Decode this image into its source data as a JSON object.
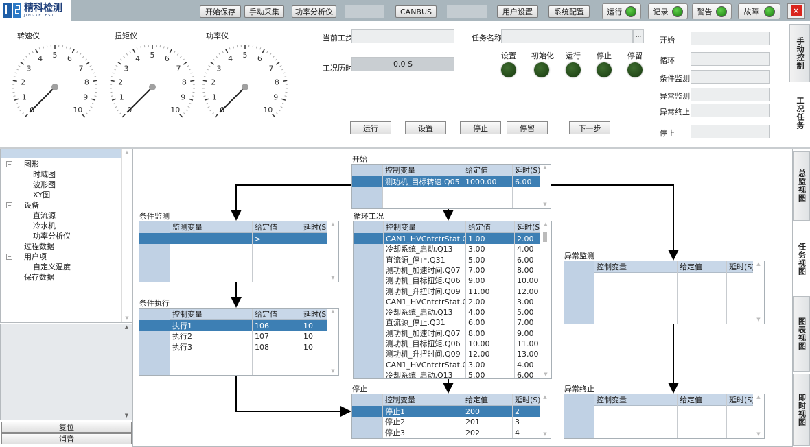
{
  "app": {
    "logo_text": "精科检测",
    "logo_sub": "JINGKETEST"
  },
  "toolbar": {
    "buttons": [
      "开始保存",
      "手动采集",
      "功率分析仪",
      "CANBUS",
      "用户设置",
      "系统配置"
    ],
    "indicators": [
      {
        "label": "运行",
        "color": "#3cb22a"
      },
      {
        "label": "记录",
        "color": "#3cb22a"
      },
      {
        "label": "警告",
        "color": "#3cb22a"
      },
      {
        "label": "故障",
        "color": "#3cb22a"
      }
    ],
    "close": "✕"
  },
  "gauges": [
    {
      "label": "转速仪",
      "value": 0,
      "min": 0,
      "max": 10
    },
    {
      "label": "扭矩仪",
      "value": 0,
      "min": 0,
      "max": 10
    },
    {
      "label": "功率仪",
      "value": 0,
      "min": 0,
      "max": 10
    }
  ],
  "task": {
    "current_step_label": "当前工步",
    "current_step_value": "",
    "elapsed_label": "工况历时",
    "elapsed_value": "0.0 S",
    "task_name_label": "任务名称",
    "task_name_value": "",
    "browse": "...",
    "status_leds": [
      "设置",
      "初始化",
      "运行",
      "停止",
      "停留"
    ],
    "buttons": [
      "运行",
      "设置",
      "停止",
      "停留",
      "下一步"
    ],
    "sections": [
      "开始",
      "循环",
      "条件监测",
      "异常监测",
      "异常终止",
      "停止"
    ]
  },
  "top_tabs": [
    "手动控制",
    "工况任务"
  ],
  "tree": [
    {
      "label": "图形",
      "level": 0,
      "expand": true
    },
    {
      "label": "时域图",
      "level": 1
    },
    {
      "label": "波形图",
      "level": 1
    },
    {
      "label": "XY图",
      "level": 1
    },
    {
      "label": "设备",
      "level": 0,
      "expand": true
    },
    {
      "label": "直流源",
      "level": 1
    },
    {
      "label": "冷水机",
      "level": 1
    },
    {
      "label": "功率分析仪",
      "level": 1
    },
    {
      "label": "过程数据",
      "level": 0
    },
    {
      "label": "用户项",
      "level": 0,
      "expand": true
    },
    {
      "label": "自定义温度",
      "level": 1
    },
    {
      "label": "保存数据",
      "level": 0
    }
  ],
  "left_buttons": {
    "reset": "复位",
    "mute": "消音"
  },
  "side_tabs": [
    "总监视图",
    "任务视图",
    "图表视图",
    "即时视图"
  ],
  "tables": {
    "start": {
      "title": "开始",
      "headers": [
        "控制变量",
        "给定值",
        "延时(S)"
      ],
      "rows": [
        [
          "测功机_目标转速.Q05",
          "1000.00",
          "6.00"
        ]
      ]
    },
    "loop": {
      "title": "循环工况",
      "headers": [
        "控制变量",
        "给定值",
        "延时(S)"
      ],
      "rows": [
        [
          "CAN1_HVCntctrStat.Q10",
          "1.00",
          "2.00"
        ],
        [
          "冷却系统_启动.Q13",
          "3.00",
          "4.00"
        ],
        [
          "直流源_停止.Q31",
          "5.00",
          "6.00"
        ],
        [
          "测功机_加速时间.Q07",
          "7.00",
          "8.00"
        ],
        [
          "测功机_目标扭矩.Q06",
          "9.00",
          "10.00"
        ],
        [
          "测功机_升扭时间.Q09",
          "11.00",
          "12.00"
        ],
        [
          "CAN1_HVCntctrStat.Q10",
          "2.00",
          "3.00"
        ],
        [
          "冷却系统_启动.Q13",
          "4.00",
          "5.00"
        ],
        [
          "直流源_停止.Q31",
          "6.00",
          "7.00"
        ],
        [
          "测功机_加速时间.Q07",
          "8.00",
          "9.00"
        ],
        [
          "测功机_目标扭矩.Q06",
          "10.00",
          "11.00"
        ],
        [
          "测功机_升扭时间.Q09",
          "12.00",
          "13.00"
        ],
        [
          "CAN1_HVCntctrStat.Q10",
          "3.00",
          "4.00"
        ],
        [
          "冷却系统_启动.Q13",
          "5.00",
          "6.00"
        ]
      ]
    },
    "cond_monitor": {
      "title": "条件监测",
      "headers": [
        "监测变量",
        "给定值",
        "延时(S)"
      ],
      "rows": [
        [
          "",
          ">",
          ""
        ]
      ]
    },
    "cond_exec": {
      "title": "条件执行",
      "headers": [
        "控制变量",
        "给定值",
        "延时(S)"
      ],
      "rows": [
        [
          "执行1",
          "106",
          "10"
        ],
        [
          "执行2",
          "107",
          "10"
        ],
        [
          "执行3",
          "108",
          "10"
        ]
      ]
    },
    "stop": {
      "title": "停止",
      "headers": [
        "控制变量",
        "给定值",
        "延时(S)"
      ],
      "rows": [
        [
          "停止1",
          "200",
          "2"
        ],
        [
          "停止2",
          "201",
          "3"
        ],
        [
          "停止3",
          "202",
          "4"
        ]
      ]
    },
    "abn_monitor": {
      "title": "异常监测",
      "headers": [
        "控制变量",
        "给定值",
        "延时(S)"
      ],
      "rows": []
    },
    "abn_stop": {
      "title": "异常终止",
      "headers": [
        "控制变量",
        "给定值",
        "延时(S)"
      ],
      "rows": []
    }
  }
}
